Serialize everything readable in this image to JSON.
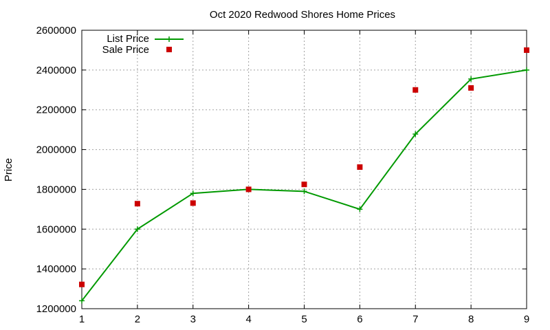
{
  "chart_data": {
    "type": "line",
    "title": "Oct 2020 Redwood Shores Home Prices",
    "xlabel": "",
    "ylabel": "Price",
    "x": [
      1,
      2,
      3,
      4,
      5,
      6,
      7,
      8,
      9
    ],
    "xlim": [
      1,
      9
    ],
    "ylim": [
      1200000,
      2600000
    ],
    "yticks": [
      1200000,
      1400000,
      1600000,
      1800000,
      2000000,
      2200000,
      2400000,
      2600000
    ],
    "xticks": [
      1,
      2,
      3,
      4,
      5,
      6,
      7,
      8,
      9
    ],
    "grid": true,
    "legend_position": "top-left",
    "series": [
      {
        "name": "List Price",
        "style": "line-with-plus-markers",
        "color": "#009900",
        "values": [
          1240000,
          1600000,
          1780000,
          1800000,
          1790000,
          1700000,
          2078000,
          2355000,
          2400000
        ]
      },
      {
        "name": "Sale Price",
        "style": "square-points",
        "color": "#cc0000",
        "values": [
          1322000,
          1728000,
          1731000,
          1800000,
          1825000,
          1912000,
          2300000,
          2310000,
          2500000
        ]
      }
    ]
  }
}
